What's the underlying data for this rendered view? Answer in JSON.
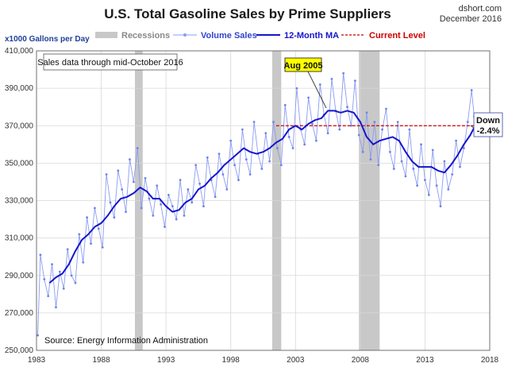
{
  "brand": {
    "site": "dshort.com",
    "date": "December 2016"
  },
  "chart_data": {
    "type": "line",
    "title": "U.S. Total Gasoline Sales by Prime Suppliers",
    "ylabel": "x1000  Gallons per Day",
    "ylim": [
      250000,
      410000
    ],
    "xlim": [
      1983,
      2018
    ],
    "y_ticks": [
      "250,000",
      "270,000",
      "290,000",
      "310,000",
      "330,000",
      "350,000",
      "370,000",
      "390,000",
      "410,000"
    ],
    "y_tick_values": [
      250000,
      270000,
      290000,
      310000,
      330000,
      350000,
      370000,
      390000,
      410000
    ],
    "x_ticks": [
      "1983",
      "1988",
      "1993",
      "1998",
      "2003",
      "2008",
      "2013",
      "2018"
    ],
    "x_tick_values": [
      1983,
      1988,
      1993,
      1998,
      2003,
      2008,
      2013,
      2018
    ],
    "grid": true,
    "legend": {
      "position": "top",
      "items": [
        {
          "label": "Recessions",
          "color": "#c8c8c8"
        },
        {
          "label": "Volume Sales",
          "color": "#8a9cf0"
        },
        {
          "label": "12-Month MA",
          "color": "#1515cc"
        },
        {
          "label": "Current Level",
          "color": "#cc0000"
        }
      ]
    },
    "recessions": [
      [
        1990.6,
        1991.2
      ],
      [
        2001.2,
        2001.9
      ],
      [
        2007.9,
        2009.5
      ]
    ],
    "series": [
      {
        "name": "12-Month MA",
        "x": [
          1984.0,
          1984.5,
          1985.0,
          1985.5,
          1986.0,
          1986.5,
          1987.0,
          1987.5,
          1988.0,
          1988.5,
          1989.0,
          1989.5,
          1990.0,
          1990.5,
          1991.0,
          1991.5,
          1992.0,
          1992.5,
          1993.0,
          1993.5,
          1994.0,
          1994.5,
          1995.0,
          1995.5,
          1996.0,
          1996.5,
          1997.0,
          1997.5,
          1998.0,
          1998.5,
          1999.0,
          1999.5,
          2000.0,
          2000.5,
          2001.0,
          2001.5,
          2002.0,
          2002.5,
          2003.0,
          2003.5,
          2004.0,
          2004.5,
          2005.0,
          2005.5,
          2006.0,
          2006.5,
          2007.0,
          2007.5,
          2008.0,
          2008.5,
          2009.0,
          2009.5,
          2010.0,
          2010.5,
          2011.0,
          2011.5,
          2012.0,
          2012.5,
          2013.0,
          2013.5,
          2014.0,
          2014.5,
          2015.0,
          2015.5,
          2016.0,
          2016.5,
          2016.8
        ],
        "values": [
          286000,
          289000,
          291000,
          296000,
          303000,
          309000,
          312000,
          316000,
          318000,
          322000,
          327000,
          331000,
          332000,
          334000,
          337000,
          335000,
          331000,
          331000,
          327000,
          324000,
          325000,
          329000,
          331000,
          336000,
          338000,
          342000,
          345000,
          349000,
          352000,
          355000,
          358000,
          356000,
          355000,
          356000,
          358000,
          361000,
          363000,
          368000,
          370000,
          368000,
          371000,
          373000,
          374000,
          378000,
          378000,
          377000,
          378000,
          377000,
          372000,
          364000,
          360000,
          362000,
          363000,
          364000,
          362000,
          356000,
          351000,
          348000,
          348000,
          348000,
          346000,
          345000,
          349000,
          354000,
          360000,
          365000,
          369000
        ]
      },
      {
        "name": "Volume Sales",
        "x": [
          1983.1,
          1983.3,
          1983.6,
          1983.9,
          1984.2,
          1984.5,
          1984.8,
          1985.1,
          1985.4,
          1985.7,
          1986.0,
          1986.3,
          1986.6,
          1986.9,
          1987.2,
          1987.5,
          1987.8,
          1988.1,
          1988.4,
          1988.7,
          1989.0,
          1989.3,
          1989.6,
          1989.9,
          1990.2,
          1990.5,
          1990.8,
          1991.1,
          1991.4,
          1991.7,
          1992.0,
          1992.3,
          1992.6,
          1992.9,
          1993.2,
          1993.5,
          1993.8,
          1994.1,
          1994.4,
          1994.7,
          1995.0,
          1995.3,
          1995.6,
          1995.9,
          1996.2,
          1996.5,
          1996.8,
          1997.1,
          1997.4,
          1997.7,
          1998.0,
          1998.3,
          1998.6,
          1998.9,
          1999.2,
          1999.5,
          1999.8,
          2000.1,
          2000.4,
          2000.7,
          2001.0,
          2001.3,
          2001.6,
          2001.9,
          2002.2,
          2002.5,
          2002.8,
          2003.1,
          2003.4,
          2003.7,
          2004.0,
          2004.3,
          2004.6,
          2004.9,
          2005.2,
          2005.5,
          2005.8,
          2006.1,
          2006.4,
          2006.7,
          2007.0,
          2007.3,
          2007.6,
          2007.9,
          2008.2,
          2008.5,
          2008.8,
          2009.1,
          2009.4,
          2009.7,
          2010.0,
          2010.3,
          2010.6,
          2010.9,
          2011.2,
          2011.5,
          2011.8,
          2012.1,
          2012.4,
          2012.7,
          2013.0,
          2013.3,
          2013.6,
          2013.9,
          2014.2,
          2014.5,
          2014.8,
          2015.1,
          2015.4,
          2015.7,
          2016.0,
          2016.3,
          2016.6,
          2016.8
        ],
        "values": [
          258000,
          301000,
          288000,
          279000,
          296000,
          273000,
          292000,
          283000,
          304000,
          290000,
          286000,
          312000,
          297000,
          321000,
          307000,
          326000,
          315000,
          305000,
          344000,
          329000,
          321000,
          346000,
          336000,
          324000,
          352000,
          340000,
          358000,
          326000,
          342000,
          331000,
          322000,
          338000,
          328000,
          316000,
          333000,
          327000,
          320000,
          341000,
          322000,
          336000,
          329000,
          349000,
          339000,
          327000,
          353000,
          341000,
          332000,
          355000,
          344000,
          336000,
          362000,
          349000,
          341000,
          368000,
          352000,
          344000,
          372000,
          355000,
          347000,
          366000,
          351000,
          372000,
          358000,
          349000,
          381000,
          364000,
          358000,
          390000,
          368000,
          360000,
          385000,
          371000,
          362000,
          392000,
          376000,
          366000,
          395000,
          378000,
          368000,
          398000,
          380000,
          370000,
          394000,
          365000,
          356000,
          377000,
          352000,
          372000,
          349000,
          368000,
          379000,
          356000,
          347000,
          372000,
          351000,
          343000,
          368000,
          347000,
          338000,
          360000,
          341000,
          333000,
          357000,
          338000,
          327000,
          351000,
          336000,
          344000,
          362000,
          348000,
          358000,
          372000,
          389000,
          375000
        ]
      },
      {
        "name": "Current Level",
        "x": [
          2001.5,
          2016.8
        ],
        "values": [
          370000,
          370000
        ]
      }
    ],
    "annotations": [
      {
        "text": "Sales data through mid-October 2016"
      },
      {
        "text": "Aug 2005",
        "x": 2005.6,
        "y": 378000
      },
      {
        "text": "Down",
        "x": 2016.8,
        "y": 370000
      },
      {
        "text": "-2.4%"
      },
      {
        "text": "Source: Energy Information Administration"
      }
    ]
  }
}
